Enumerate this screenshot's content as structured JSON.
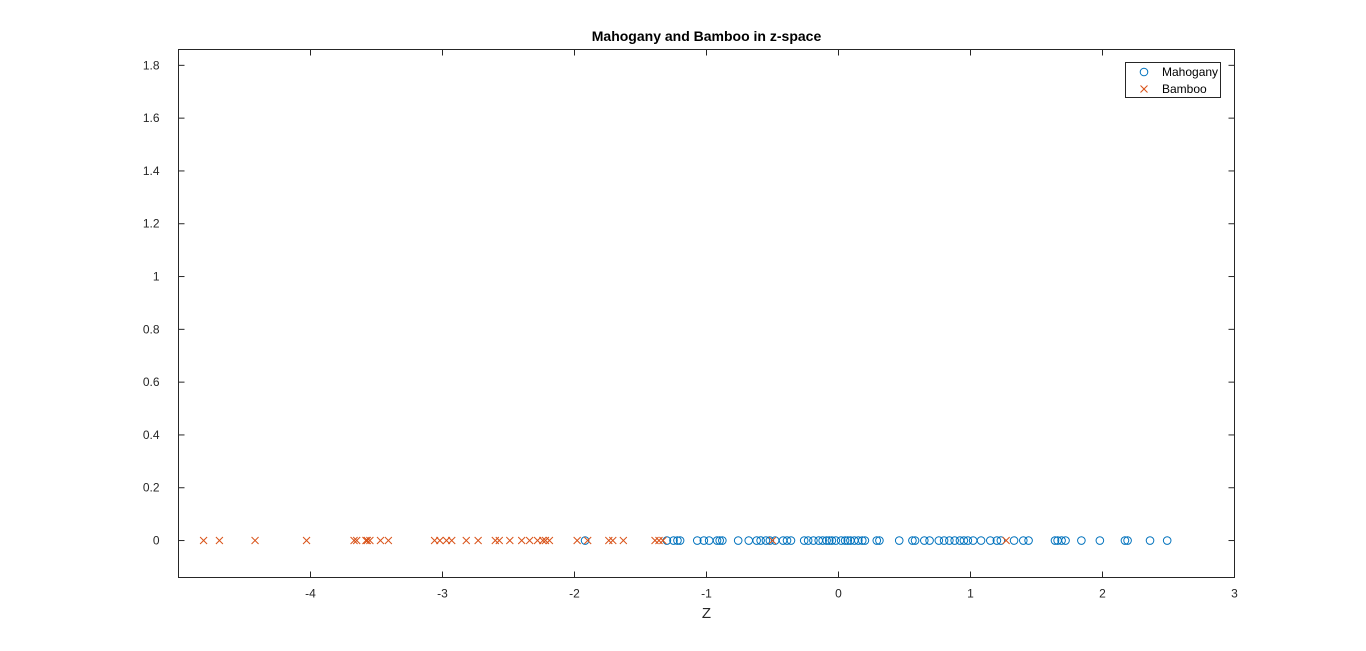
{
  "chart_data": {
    "type": "scatter",
    "title": "Mahogany and Bamboo in z-space",
    "xlabel": "Z",
    "ylabel": "",
    "xlim": [
      -5,
      3
    ],
    "ylim": [
      -0.14,
      1.86
    ],
    "xticks": [
      "-4",
      "-3",
      "-2",
      "-1",
      "0",
      "1",
      "2",
      "3"
    ],
    "yticks": [
      "0",
      "0.2",
      "0.4",
      "0.6",
      "0.8",
      "1",
      "1.2",
      "1.4",
      "1.6",
      "1.8"
    ],
    "grid": false,
    "legend_position": "top-right",
    "series": [
      {
        "name": "Mahogany",
        "marker": "circle",
        "color": "#0072BD",
        "x": [
          -1.92,
          -1.3,
          -1.25,
          -1.22,
          -1.2,
          -1.07,
          -1.02,
          -0.98,
          -0.92,
          -0.9,
          -0.88,
          -0.76,
          -0.68,
          -0.62,
          -0.59,
          -0.55,
          -0.52,
          -0.48,
          -0.42,
          -0.39,
          -0.36,
          -0.26,
          -0.23,
          -0.19,
          -0.15,
          -0.12,
          -0.09,
          -0.07,
          -0.05,
          -0.02,
          0.02,
          0.05,
          0.07,
          0.09,
          0.12,
          0.15,
          0.18,
          0.2,
          0.29,
          0.31,
          0.46,
          0.56,
          0.58,
          0.65,
          0.69,
          0.76,
          0.8,
          0.84,
          0.88,
          0.92,
          0.95,
          0.98,
          1.02,
          1.08,
          1.15,
          1.2,
          1.23,
          1.33,
          1.4,
          1.44,
          1.64,
          1.66,
          1.69,
          1.72,
          1.84,
          1.98,
          2.17,
          2.19,
          2.36,
          2.49
        ],
        "y": [
          0,
          0,
          0,
          0,
          0,
          0,
          0,
          0,
          0,
          0,
          0,
          0,
          0,
          0,
          0,
          0,
          0,
          0,
          0,
          0,
          0,
          0,
          0,
          0,
          0,
          0,
          0,
          0,
          0,
          0,
          0,
          0,
          0,
          0,
          0,
          0,
          0,
          0,
          0,
          0,
          0,
          0,
          0,
          0,
          0,
          0,
          0,
          0,
          0,
          0,
          0,
          0,
          0,
          0,
          0,
          0,
          0,
          0,
          0,
          0,
          0,
          0,
          0,
          0,
          0,
          0,
          0,
          0,
          0,
          0
        ]
      },
      {
        "name": "Bamboo",
        "marker": "x",
        "color": "#D95319",
        "x": [
          -4.81,
          -4.69,
          -4.42,
          -4.03,
          -3.67,
          -3.65,
          -3.58,
          -3.57,
          -3.55,
          -3.47,
          -3.41,
          -3.06,
          -3.02,
          -2.97,
          -2.93,
          -2.82,
          -2.73,
          -2.6,
          -2.57,
          -2.49,
          -2.4,
          -2.34,
          -2.28,
          -2.24,
          -2.22,
          -2.19,
          -1.98,
          -1.9,
          -1.74,
          -1.71,
          -1.63,
          -1.39,
          -1.36,
          -1.33,
          -0.5,
          1.27
        ],
        "y": [
          0,
          0,
          0,
          0,
          0,
          0,
          0,
          0,
          0,
          0,
          0,
          0,
          0,
          0,
          0,
          0,
          0,
          0,
          0,
          0,
          0,
          0,
          0,
          0,
          0,
          0,
          0,
          0,
          0,
          0,
          0,
          0,
          0,
          0,
          0,
          0
        ]
      }
    ]
  }
}
